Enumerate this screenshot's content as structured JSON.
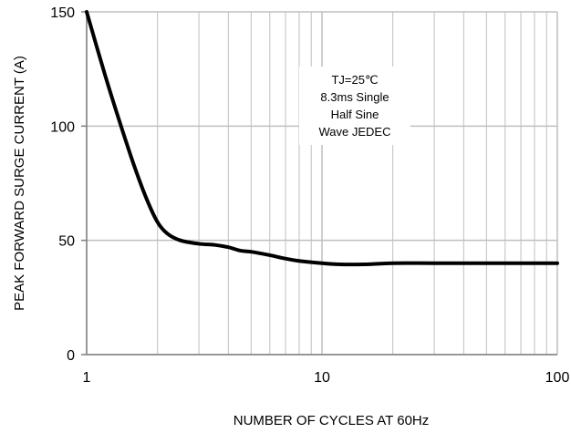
{
  "chart_data": {
    "type": "line",
    "title": "",
    "xlabel": "NUMBER OF CYCLES AT 60Hz",
    "ylabel": "PEAK FORWARD SURGE CURRENT (A)",
    "x_scale": "log",
    "xlim": [
      1,
      100
    ],
    "ylim": [
      0,
      150
    ],
    "x_ticks": [
      "1",
      "10",
      "100"
    ],
    "y_ticks": [
      "0",
      "50",
      "100",
      "150"
    ],
    "grid": true,
    "annotation": [
      "TJ=25℃",
      "8.3ms Single",
      "Half  Sine",
      "Wave JEDEC"
    ],
    "colors": {
      "line": "#000000",
      "grid": "#bfbfbf",
      "axis": "#808080"
    },
    "series": [
      {
        "x": [
          1,
          1.2,
          1.4,
          1.6,
          1.8,
          2,
          2.2,
          2.5,
          3,
          3.5,
          4,
          4.5,
          5,
          6,
          7,
          8,
          10,
          12,
          15,
          20,
          30,
          50,
          100
        ],
        "y": [
          150,
          122,
          100,
          82,
          68,
          58,
          53,
          50,
          48.5,
          48,
          47,
          45.5,
          45,
          43.5,
          42,
          41,
          40,
          39.5,
          39.5,
          40,
          40,
          40,
          40
        ]
      }
    ]
  }
}
